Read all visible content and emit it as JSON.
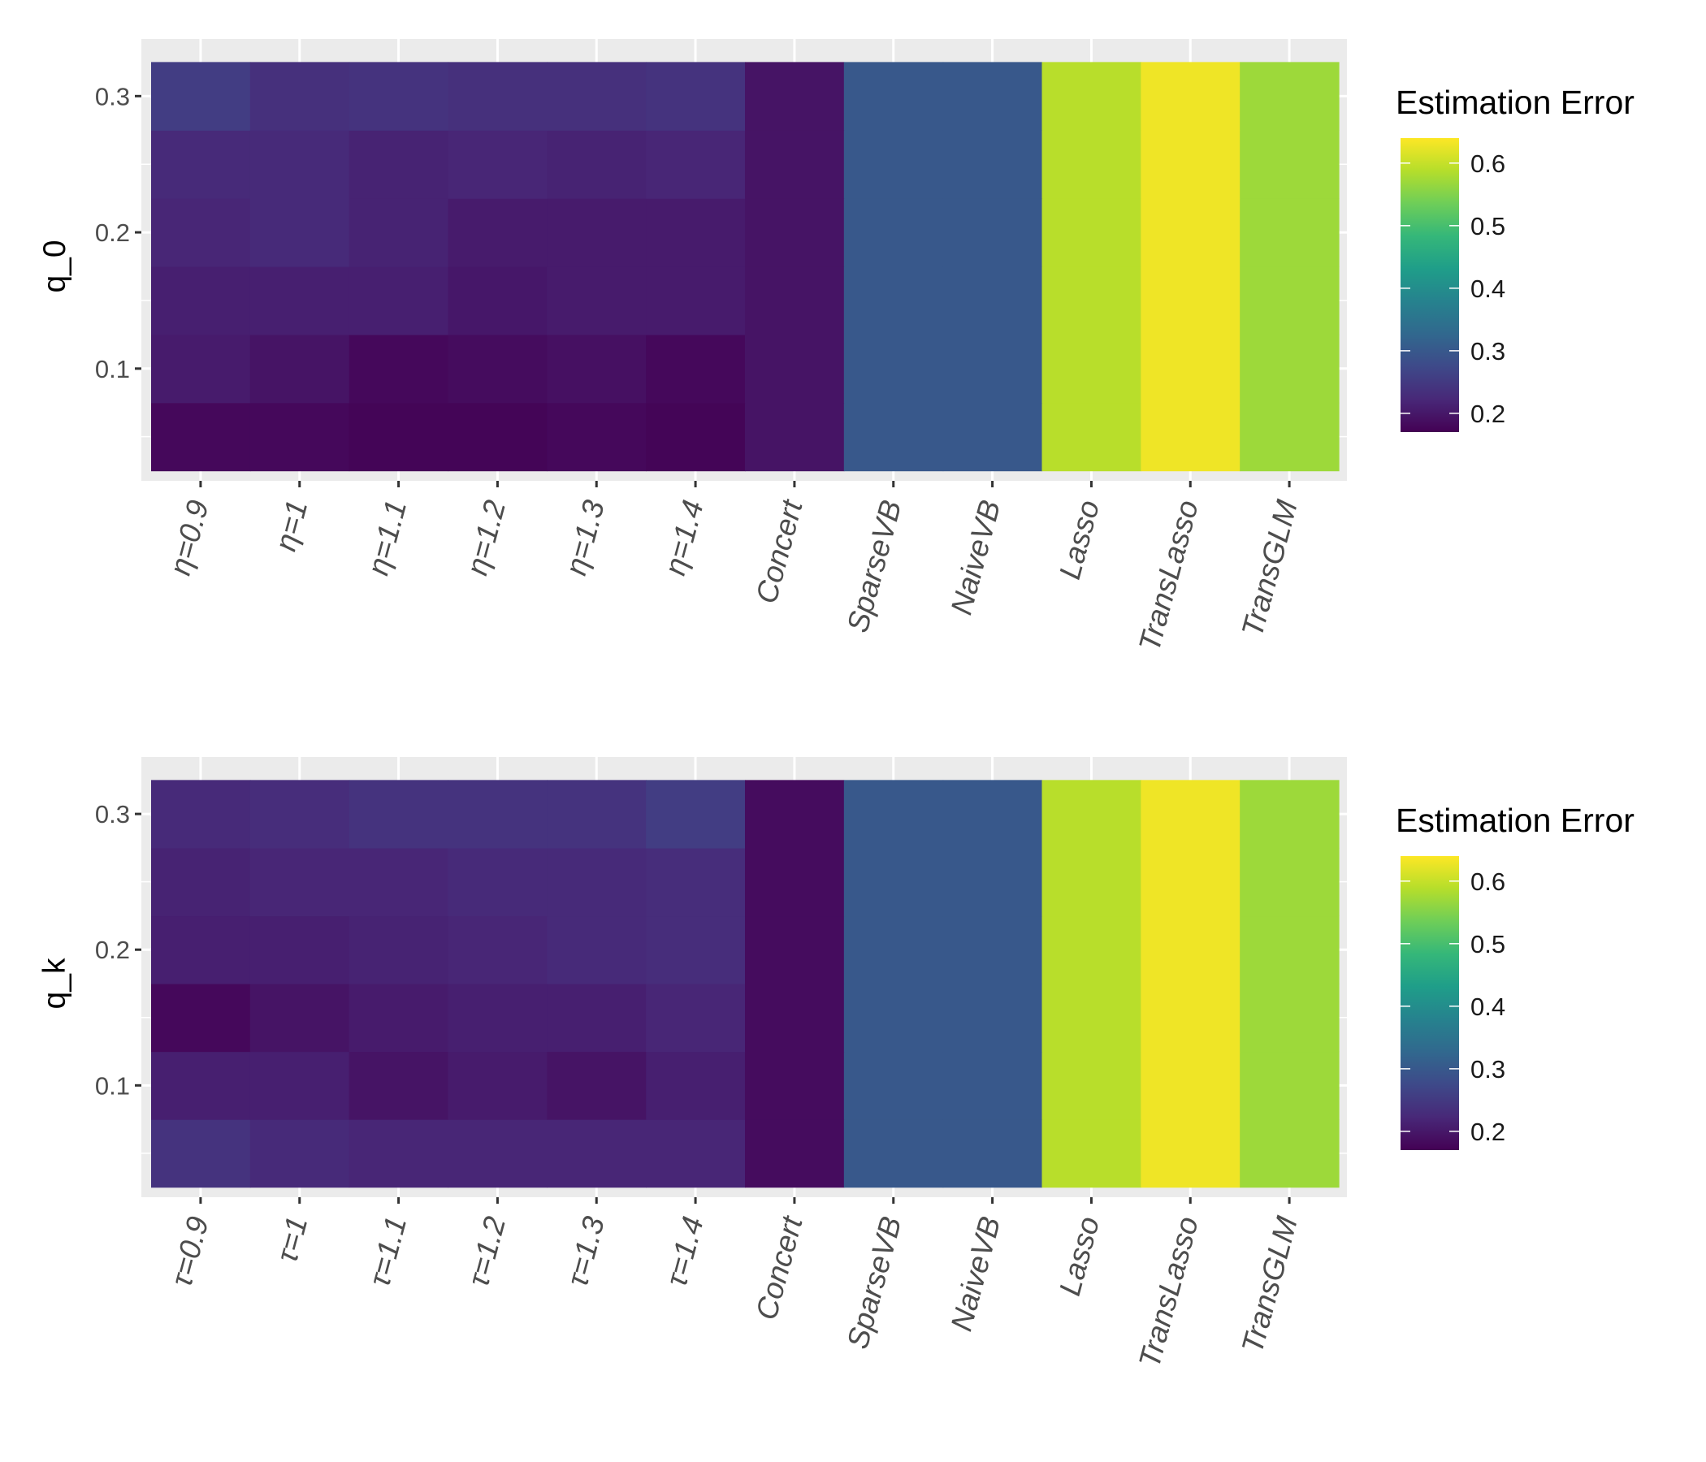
{
  "chart_data": [
    {
      "type": "heatmap",
      "title": "",
      "xlabel": "",
      "ylabel": "q_0",
      "categories": [
        "η=0.9",
        "η=1",
        "η=1.1",
        "η=1.2",
        "η=1.3",
        "η=1.4",
        "Concert",
        "SparseVB",
        "NaiveVB",
        "Lasso",
        "TransLasso",
        "TransGLM"
      ],
      "y_values": [
        0.025,
        0.075,
        0.125,
        0.175,
        0.225,
        0.275
      ],
      "y_ticks": [
        "0.1",
        "0.2",
        "0.3"
      ],
      "ylim": [
        0.02,
        0.33
      ],
      "grid": true,
      "z": [
        [
          0.18,
          0.18,
          0.175,
          0.175,
          0.18,
          0.175,
          0.195,
          0.3,
          0.3,
          0.59,
          0.63,
          0.57
        ],
        [
          0.205,
          0.195,
          0.18,
          0.185,
          0.19,
          0.18,
          0.195,
          0.3,
          0.3,
          0.59,
          0.63,
          0.57
        ],
        [
          0.21,
          0.21,
          0.21,
          0.2,
          0.205,
          0.205,
          0.195,
          0.3,
          0.3,
          0.59,
          0.63,
          0.57
        ],
        [
          0.22,
          0.225,
          0.215,
          0.205,
          0.205,
          0.205,
          0.195,
          0.3,
          0.3,
          0.59,
          0.63,
          0.57
        ],
        [
          0.225,
          0.225,
          0.215,
          0.22,
          0.215,
          0.22,
          0.195,
          0.3,
          0.3,
          0.59,
          0.63,
          0.57
        ],
        [
          0.255,
          0.235,
          0.24,
          0.235,
          0.235,
          0.24,
          0.195,
          0.3,
          0.3,
          0.59,
          0.63,
          0.57
        ]
      ],
      "legend": {
        "title": "Estimation Error",
        "position": "right",
        "range": [
          0.17,
          0.64
        ],
        "ticks": [
          "0.2",
          "0.3",
          "0.4",
          "0.5",
          "0.6"
        ]
      }
    },
    {
      "type": "heatmap",
      "title": "",
      "xlabel": "",
      "ylabel": "q_k",
      "categories": [
        "τ=0.9",
        "τ=1",
        "τ=1.1",
        "τ=1.2",
        "τ=1.3",
        "τ=1.4",
        "Concert",
        "SparseVB",
        "NaiveVB",
        "Lasso",
        "TransLasso",
        "TransGLM"
      ],
      "y_values": [
        0.025,
        0.075,
        0.125,
        0.175,
        0.225,
        0.275
      ],
      "y_ticks": [
        "0.1",
        "0.2",
        "0.3"
      ],
      "ylim": [
        0.02,
        0.33
      ],
      "grid": true,
      "z": [
        [
          0.24,
          0.225,
          0.22,
          0.22,
          0.22,
          0.22,
          0.185,
          0.3,
          0.3,
          0.59,
          0.63,
          0.57
        ],
        [
          0.21,
          0.21,
          0.195,
          0.205,
          0.195,
          0.21,
          0.185,
          0.3,
          0.3,
          0.59,
          0.63,
          0.57
        ],
        [
          0.18,
          0.195,
          0.205,
          0.21,
          0.21,
          0.22,
          0.185,
          0.3,
          0.3,
          0.59,
          0.63,
          0.57
        ],
        [
          0.21,
          0.21,
          0.215,
          0.22,
          0.225,
          0.23,
          0.185,
          0.3,
          0.3,
          0.59,
          0.63,
          0.57
        ],
        [
          0.215,
          0.22,
          0.22,
          0.225,
          0.225,
          0.23,
          0.185,
          0.3,
          0.3,
          0.59,
          0.63,
          0.57
        ],
        [
          0.225,
          0.23,
          0.24,
          0.24,
          0.24,
          0.255,
          0.185,
          0.3,
          0.3,
          0.59,
          0.63,
          0.57
        ]
      ],
      "legend": {
        "title": "Estimation Error",
        "position": "right",
        "range": [
          0.17,
          0.64
        ],
        "ticks": [
          "0.2",
          "0.3",
          "0.4",
          "0.5",
          "0.6"
        ]
      }
    }
  ],
  "palette": [
    "#440154",
    "#482878",
    "#3e4989",
    "#31688e",
    "#26828e",
    "#1f9e89",
    "#35b779",
    "#6ece58",
    "#b5de2b",
    "#fde725"
  ]
}
